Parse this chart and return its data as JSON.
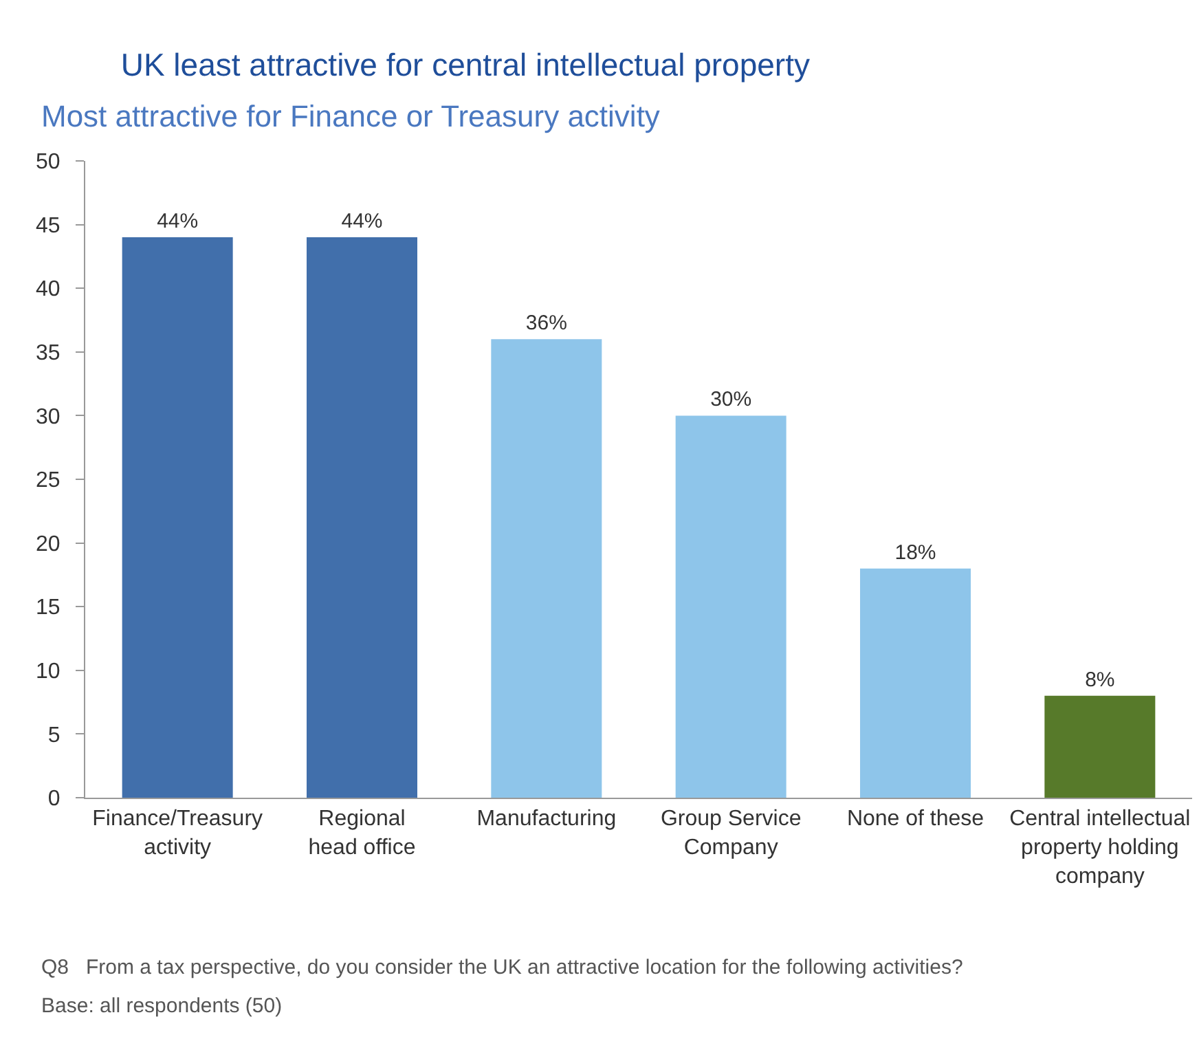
{
  "chart_data": {
    "type": "bar",
    "title": "UK least attractive for central intellectual property",
    "subtitle": "Most attractive for Finance or Treasury activity",
    "categories": [
      "Finance/Treasury\nactivity",
      "Regional\nhead office",
      "Manufacturing",
      "Group Service\nCompany",
      "None of these",
      "Central intellectual\nproperty holding\ncompany"
    ],
    "values": [
      44,
      44,
      36,
      30,
      18,
      8
    ],
    "colors": [
      "#416fab",
      "#416fab",
      "#8ec5ea",
      "#8ec5ea",
      "#8ec5ea",
      "#577a2a"
    ],
    "value_labels": [
      "44%",
      "44%",
      "36%",
      "30%",
      "18%",
      "8%"
    ],
    "ylim": [
      0,
      50
    ],
    "yticks": [
      0,
      5,
      10,
      15,
      20,
      25,
      30,
      35,
      40,
      45,
      50
    ],
    "grid": false,
    "legend": false,
    "annotations": [
      "Q8   From a tax perspective, do you consider the UK an attractive location for the following activities?",
      "Base: all respondents (50)"
    ]
  }
}
